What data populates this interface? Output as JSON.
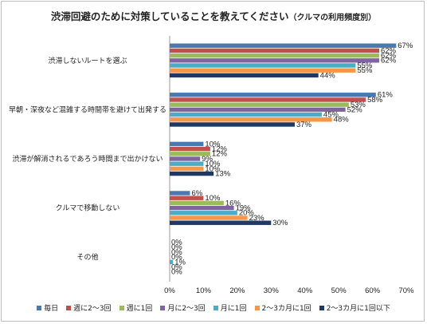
{
  "chart_data": {
    "type": "bar",
    "orientation": "horizontal",
    "title": "渋滞回避のために対策していることを教えてください",
    "subtitle": "（クルマの利用頻度別）",
    "categories": [
      "渋滞しないルートを選ぶ",
      "早朝・深夜など混雑する時間帯を避けて出発する",
      "渋滞が解消されるであろう時間まで出かけない",
      "クルマで移動しない",
      "その他"
    ],
    "series": [
      {
        "name": "毎日",
        "color": "#4a79b0",
        "values": [
          67,
          61,
          10,
          6,
          0
        ]
      },
      {
        "name": "週に2～3回",
        "color": "#c0504d",
        "values": [
          62,
          58,
          12,
          10,
          0
        ]
      },
      {
        "name": "週に1回",
        "color": "#9bbb59",
        "values": [
          62,
          53,
          12,
          16,
          0
        ]
      },
      {
        "name": "月に2～3回",
        "color": "#8064a2",
        "values": [
          62,
          52,
          9,
          19,
          0
        ]
      },
      {
        "name": "月に1回",
        "color": "#4bacc6",
        "values": [
          55,
          45,
          10,
          20,
          1
        ]
      },
      {
        "name": "2～3カ月に1回",
        "color": "#f79646",
        "values": [
          55,
          48,
          10,
          23,
          0
        ]
      },
      {
        "name": "2～3カ月に1回以下",
        "color": "#1f3864",
        "values": [
          44,
          37,
          13,
          30,
          0
        ]
      }
    ],
    "value_suffix": "%",
    "xlim": [
      0,
      70
    ],
    "xticks": [
      0,
      10,
      20,
      30,
      40,
      50,
      60,
      70
    ],
    "grid": false,
    "legend_position": "bottom"
  }
}
